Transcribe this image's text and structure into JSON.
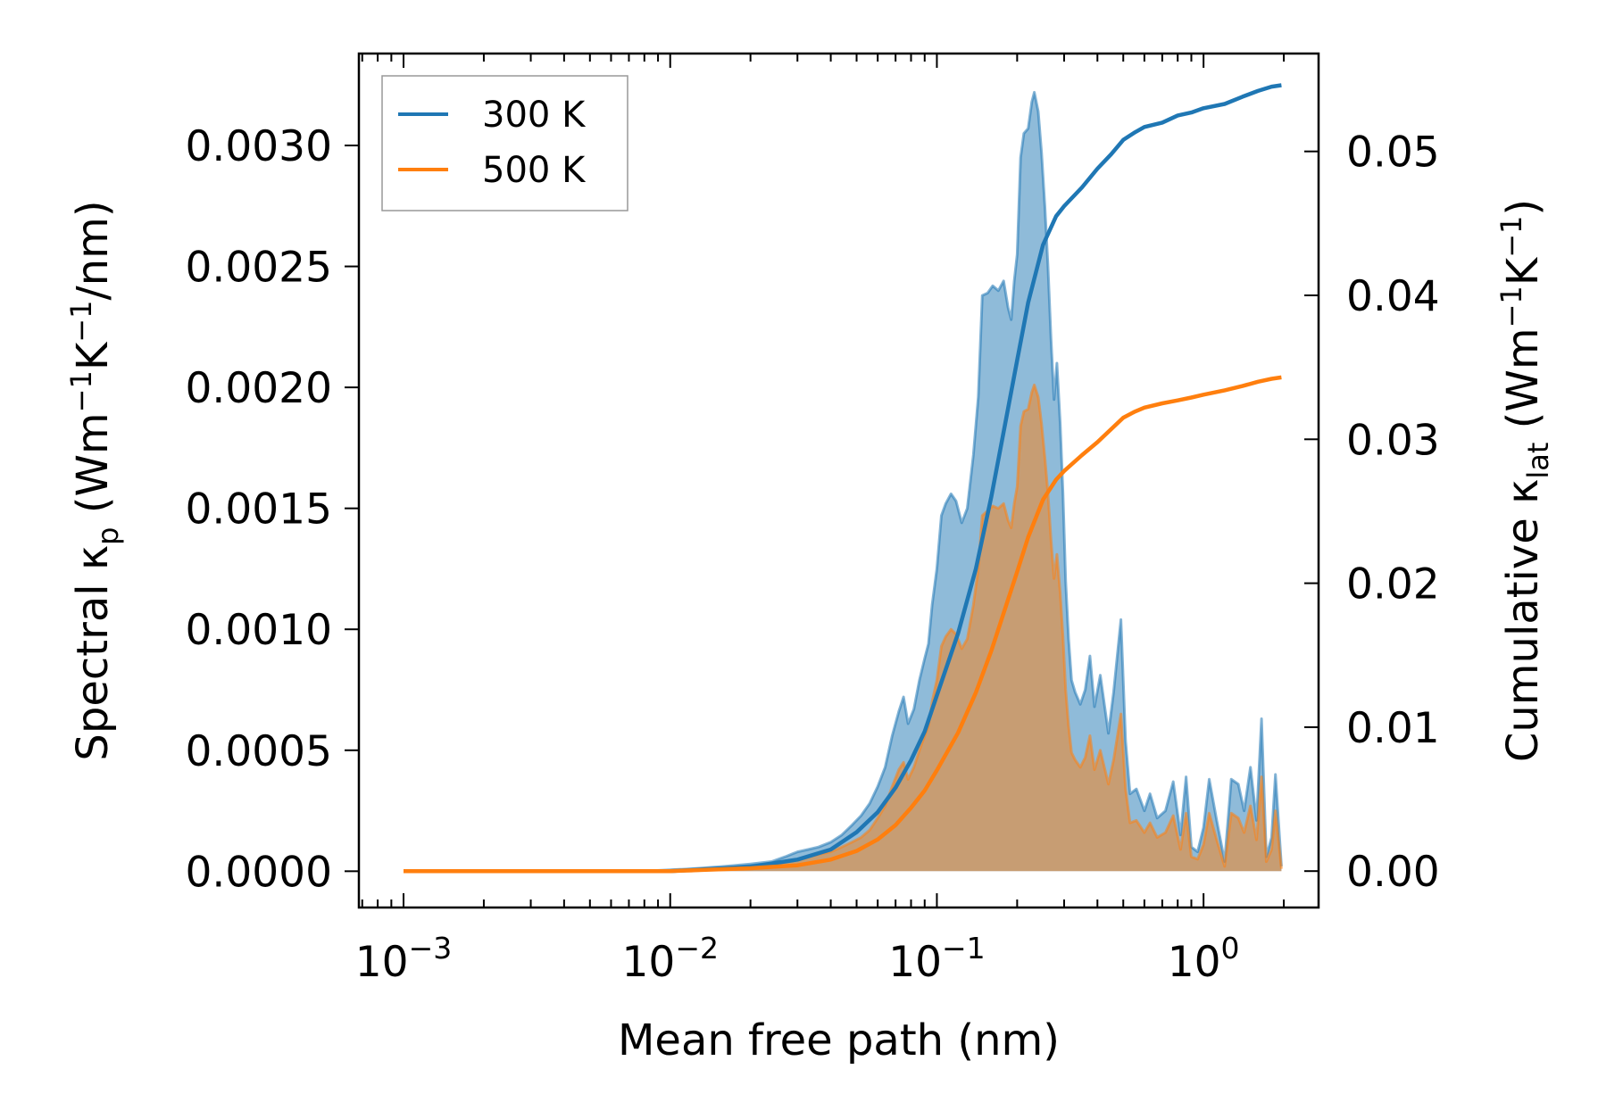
{
  "chart_data": {
    "type": "area",
    "title": "",
    "xlabel": "Mean free path (nm)",
    "ylabel_left": {
      "prefix": "Spectral κ",
      "sub": "p",
      "mid": " (Wm",
      "sup1": "−1",
      "mid2": "K",
      "sup2": "−1",
      "suffix": "/nm)"
    },
    "ylabel_right": {
      "prefix": "Cumulative κ",
      "sub": "lat",
      "mid": " (Wm",
      "sup1": "−1",
      "mid2": "K",
      "sup2": "−1",
      "suffix": ")"
    },
    "xscale": "log",
    "xlim": [
      0.00068,
      2.7
    ],
    "ylim_left": [
      -0.00015,
      0.00338
    ],
    "ylim_right": [
      -0.00253,
      0.0568
    ],
    "x_ticks": [
      {
        "base": "10",
        "exp": "−3",
        "value": 0.001
      },
      {
        "base": "10",
        "exp": "−2",
        "value": 0.01
      },
      {
        "base": "10",
        "exp": "−1",
        "value": 0.1
      },
      {
        "base": "10",
        "exp": "0",
        "value": 1
      }
    ],
    "y_left_ticks": [
      "0.0000",
      "0.0005",
      "0.0010",
      "0.0015",
      "0.0020",
      "0.0025",
      "0.0030"
    ],
    "y_left_tick_values": [
      0,
      0.0005,
      0.001,
      0.0015,
      0.002,
      0.0025,
      0.003
    ],
    "y_right_ticks": [
      "0.00",
      "0.01",
      "0.02",
      "0.03",
      "0.04",
      "0.05"
    ],
    "y_right_tick_values": [
      0,
      0.01,
      0.02,
      0.03,
      0.04,
      0.05
    ],
    "legend": {
      "position": "top-left",
      "entries": [
        "300 K",
        "500 K"
      ]
    },
    "colors": {
      "300K": "#1f77b4",
      "500K": "#ff7f0e",
      "fill300": "#1f77b4",
      "fill500": "#ff7f0e"
    },
    "spectral_300K": [
      [
        0.001,
        0
      ],
      [
        0.003,
        0
      ],
      [
        0.005,
        0
      ],
      [
        0.008,
        0
      ],
      [
        0.012,
        1e-05
      ],
      [
        0.016,
        2e-05
      ],
      [
        0.02,
        3e-05
      ],
      [
        0.024,
        4e-05
      ],
      [
        0.027,
        6e-05
      ],
      [
        0.03,
        8e-05
      ],
      [
        0.033,
        9e-05
      ],
      [
        0.036,
        0.0001
      ],
      [
        0.04,
        0.00012
      ],
      [
        0.044,
        0.00015
      ],
      [
        0.048,
        0.00019
      ],
      [
        0.052,
        0.00023
      ],
      [
        0.056,
        0.00028
      ],
      [
        0.06,
        0.00035
      ],
      [
        0.064,
        0.00043
      ],
      [
        0.068,
        0.00056
      ],
      [
        0.072,
        0.00066
      ],
      [
        0.075,
        0.00072
      ],
      [
        0.078,
        0.00061
      ],
      [
        0.082,
        0.00067
      ],
      [
        0.086,
        0.00079
      ],
      [
        0.09,
        0.00088
      ],
      [
        0.093,
        0.00094
      ],
      [
        0.096,
        0.0011
      ],
      [
        0.1,
        0.00125
      ],
      [
        0.104,
        0.00147
      ],
      [
        0.108,
        0.00152
      ],
      [
        0.113,
        0.00156
      ],
      [
        0.118,
        0.00153
      ],
      [
        0.124,
        0.00144
      ],
      [
        0.13,
        0.0015
      ],
      [
        0.137,
        0.00172
      ],
      [
        0.143,
        0.00196
      ],
      [
        0.148,
        0.00238
      ],
      [
        0.155,
        0.00239
      ],
      [
        0.162,
        0.00242
      ],
      [
        0.17,
        0.0024
      ],
      [
        0.178,
        0.00244
      ],
      [
        0.185,
        0.00233
      ],
      [
        0.19,
        0.00228
      ],
      [
        0.195,
        0.00244
      ],
      [
        0.2,
        0.00255
      ],
      [
        0.206,
        0.00295
      ],
      [
        0.212,
        0.00305
      ],
      [
        0.22,
        0.00307
      ],
      [
        0.227,
        0.00318
      ],
      [
        0.232,
        0.00322
      ],
      [
        0.24,
        0.00314
      ],
      [
        0.247,
        0.00297
      ],
      [
        0.254,
        0.00275
      ],
      [
        0.261,
        0.0025
      ],
      [
        0.268,
        0.0022
      ],
      [
        0.275,
        0.00195
      ],
      [
        0.282,
        0.0021
      ],
      [
        0.29,
        0.00185
      ],
      [
        0.297,
        0.00156
      ],
      [
        0.304,
        0.0012
      ],
      [
        0.312,
        0.00096
      ],
      [
        0.32,
        0.00079
      ],
      [
        0.33,
        0.00074
      ],
      [
        0.345,
        0.00069
      ],
      [
        0.36,
        0.00075
      ],
      [
        0.375,
        0.00089
      ],
      [
        0.39,
        0.00068
      ],
      [
        0.41,
        0.00081
      ],
      [
        0.44,
        0.00057
      ],
      [
        0.46,
        0.00074
      ],
      [
        0.49,
        0.00104
      ],
      [
        0.51,
        0.00054
      ],
      [
        0.53,
        0.00032
      ],
      [
        0.56,
        0.00034
      ],
      [
        0.6,
        0.00025
      ],
      [
        0.63,
        0.00032
      ],
      [
        0.67,
        0.00022
      ],
      [
        0.72,
        0.00025
      ],
      [
        0.77,
        0.00037
      ],
      [
        0.82,
        0.00015
      ],
      [
        0.86,
        0.00039
      ],
      [
        0.9,
        0.0001
      ],
      [
        0.95,
        8e-05
      ],
      [
        1.0,
        0.00018
      ],
      [
        1.05,
        0.00038
      ],
      [
        1.12,
        0.00021
      ],
      [
        1.2,
        4e-05
      ],
      [
        1.27,
        0.00038
      ],
      [
        1.35,
        0.00036
      ],
      [
        1.42,
        0.00025
      ],
      [
        1.5,
        0.00043
      ],
      [
        1.58,
        0.00021
      ],
      [
        1.65,
        0.00063
      ],
      [
        1.72,
        6e-05
      ],
      [
        1.8,
        0.00014
      ],
      [
        1.86,
        0.0004
      ],
      [
        1.96,
        2e-05
      ]
    ],
    "spectral_500K": [
      [
        0.001,
        0
      ],
      [
        0.003,
        0
      ],
      [
        0.005,
        0
      ],
      [
        0.008,
        0
      ],
      [
        0.012,
        0
      ],
      [
        0.016,
        1e-05
      ],
      [
        0.02,
        2e-05
      ],
      [
        0.024,
        3e-05
      ],
      [
        0.027,
        4e-05
      ],
      [
        0.03,
        5e-05
      ],
      [
        0.033,
        6e-05
      ],
      [
        0.036,
        7e-05
      ],
      [
        0.04,
        8e-05
      ],
      [
        0.044,
        0.0001
      ],
      [
        0.048,
        0.00012
      ],
      [
        0.052,
        0.00014
      ],
      [
        0.056,
        0.00017
      ],
      [
        0.06,
        0.00022
      ],
      [
        0.064,
        0.00027
      ],
      [
        0.068,
        0.00035
      ],
      [
        0.072,
        0.00042
      ],
      [
        0.075,
        0.00045
      ],
      [
        0.078,
        0.00038
      ],
      [
        0.082,
        0.00043
      ],
      [
        0.086,
        0.0005
      ],
      [
        0.09,
        0.00056
      ],
      [
        0.093,
        0.0006
      ],
      [
        0.096,
        0.0007
      ],
      [
        0.1,
        0.00079
      ],
      [
        0.104,
        0.00093
      ],
      [
        0.108,
        0.00097
      ],
      [
        0.113,
        0.001
      ],
      [
        0.118,
        0.00098
      ],
      [
        0.124,
        0.00092
      ],
      [
        0.13,
        0.00096
      ],
      [
        0.137,
        0.0011
      ],
      [
        0.143,
        0.00125
      ],
      [
        0.148,
        0.00147
      ],
      [
        0.155,
        0.00149
      ],
      [
        0.162,
        0.00151
      ],
      [
        0.17,
        0.0015
      ],
      [
        0.178,
        0.00152
      ],
      [
        0.185,
        0.00145
      ],
      [
        0.19,
        0.00142
      ],
      [
        0.195,
        0.00152
      ],
      [
        0.2,
        0.00159
      ],
      [
        0.206,
        0.00184
      ],
      [
        0.212,
        0.0019
      ],
      [
        0.22,
        0.00191
      ],
      [
        0.227,
        0.00198
      ],
      [
        0.232,
        0.00201
      ],
      [
        0.24,
        0.00196
      ],
      [
        0.247,
        0.00185
      ],
      [
        0.254,
        0.00171
      ],
      [
        0.261,
        0.00156
      ],
      [
        0.268,
        0.00137
      ],
      [
        0.275,
        0.00121
      ],
      [
        0.282,
        0.00131
      ],
      [
        0.29,
        0.00115
      ],
      [
        0.297,
        0.00097
      ],
      [
        0.304,
        0.00075
      ],
      [
        0.312,
        0.0006
      ],
      [
        0.32,
        0.00049
      ],
      [
        0.33,
        0.00046
      ],
      [
        0.345,
        0.00043
      ],
      [
        0.36,
        0.00047
      ],
      [
        0.375,
        0.00056
      ],
      [
        0.39,
        0.00042
      ],
      [
        0.41,
        0.0005
      ],
      [
        0.44,
        0.00036
      ],
      [
        0.46,
        0.00046
      ],
      [
        0.49,
        0.00065
      ],
      [
        0.51,
        0.00034
      ],
      [
        0.53,
        0.0002
      ],
      [
        0.56,
        0.00021
      ],
      [
        0.6,
        0.00016
      ],
      [
        0.63,
        0.0002
      ],
      [
        0.67,
        0.00014
      ],
      [
        0.72,
        0.00016
      ],
      [
        0.77,
        0.00023
      ],
      [
        0.82,
        9e-05
      ],
      [
        0.86,
        0.00024
      ],
      [
        0.9,
        6e-05
      ],
      [
        0.95,
        5e-05
      ],
      [
        1.0,
        0.00011
      ],
      [
        1.05,
        0.00024
      ],
      [
        1.12,
        0.00013
      ],
      [
        1.2,
        2e-05
      ],
      [
        1.27,
        0.00024
      ],
      [
        1.35,
        0.00022
      ],
      [
        1.42,
        0.00016
      ],
      [
        1.5,
        0.00027
      ],
      [
        1.58,
        0.00013
      ],
      [
        1.65,
        0.00039
      ],
      [
        1.72,
        4e-05
      ],
      [
        1.8,
        9e-05
      ],
      [
        1.86,
        0.00025
      ],
      [
        1.96,
        1e-05
      ]
    ],
    "cumulative_300K": [
      [
        0.001,
        0
      ],
      [
        0.01,
        0
      ],
      [
        0.02,
        0.0003
      ],
      [
        0.03,
        0.0008
      ],
      [
        0.04,
        0.0015
      ],
      [
        0.05,
        0.0027
      ],
      [
        0.06,
        0.0041
      ],
      [
        0.07,
        0.0058
      ],
      [
        0.08,
        0.0077
      ],
      [
        0.09,
        0.0097
      ],
      [
        0.1,
        0.0122
      ],
      [
        0.12,
        0.0165
      ],
      [
        0.14,
        0.021
      ],
      [
        0.16,
        0.026
      ],
      [
        0.18,
        0.031
      ],
      [
        0.2,
        0.0355
      ],
      [
        0.22,
        0.0395
      ],
      [
        0.25,
        0.0435
      ],
      [
        0.28,
        0.0455
      ],
      [
        0.3,
        0.0462
      ],
      [
        0.35,
        0.0475
      ],
      [
        0.4,
        0.0488
      ],
      [
        0.45,
        0.0498
      ],
      [
        0.5,
        0.0508
      ],
      [
        0.55,
        0.0513
      ],
      [
        0.6,
        0.0517
      ],
      [
        0.7,
        0.052
      ],
      [
        0.8,
        0.0525
      ],
      [
        0.9,
        0.0527
      ],
      [
        1.0,
        0.053
      ],
      [
        1.2,
        0.0533
      ],
      [
        1.4,
        0.0538
      ],
      [
        1.6,
        0.0542
      ],
      [
        1.8,
        0.0545
      ],
      [
        1.96,
        0.0546
      ]
    ],
    "cumulative_500K": [
      [
        0.001,
        0
      ],
      [
        0.01,
        0
      ],
      [
        0.02,
        0.0002
      ],
      [
        0.03,
        0.0004
      ],
      [
        0.04,
        0.0008
      ],
      [
        0.05,
        0.0014
      ],
      [
        0.06,
        0.0022
      ],
      [
        0.07,
        0.0032
      ],
      [
        0.08,
        0.0044
      ],
      [
        0.09,
        0.0056
      ],
      [
        0.1,
        0.007
      ],
      [
        0.12,
        0.0096
      ],
      [
        0.14,
        0.0124
      ],
      [
        0.16,
        0.0153
      ],
      [
        0.18,
        0.0182
      ],
      [
        0.2,
        0.0208
      ],
      [
        0.22,
        0.0232
      ],
      [
        0.25,
        0.0258
      ],
      [
        0.28,
        0.0272
      ],
      [
        0.3,
        0.0278
      ],
      [
        0.35,
        0.0289
      ],
      [
        0.4,
        0.0298
      ],
      [
        0.45,
        0.0307
      ],
      [
        0.5,
        0.0315
      ],
      [
        0.55,
        0.0319
      ],
      [
        0.6,
        0.0322
      ],
      [
        0.7,
        0.0325
      ],
      [
        0.8,
        0.0327
      ],
      [
        0.9,
        0.0329
      ],
      [
        1.0,
        0.0331
      ],
      [
        1.2,
        0.0334
      ],
      [
        1.4,
        0.0337
      ],
      [
        1.6,
        0.034
      ],
      [
        1.8,
        0.0342
      ],
      [
        1.96,
        0.0343
      ]
    ]
  }
}
